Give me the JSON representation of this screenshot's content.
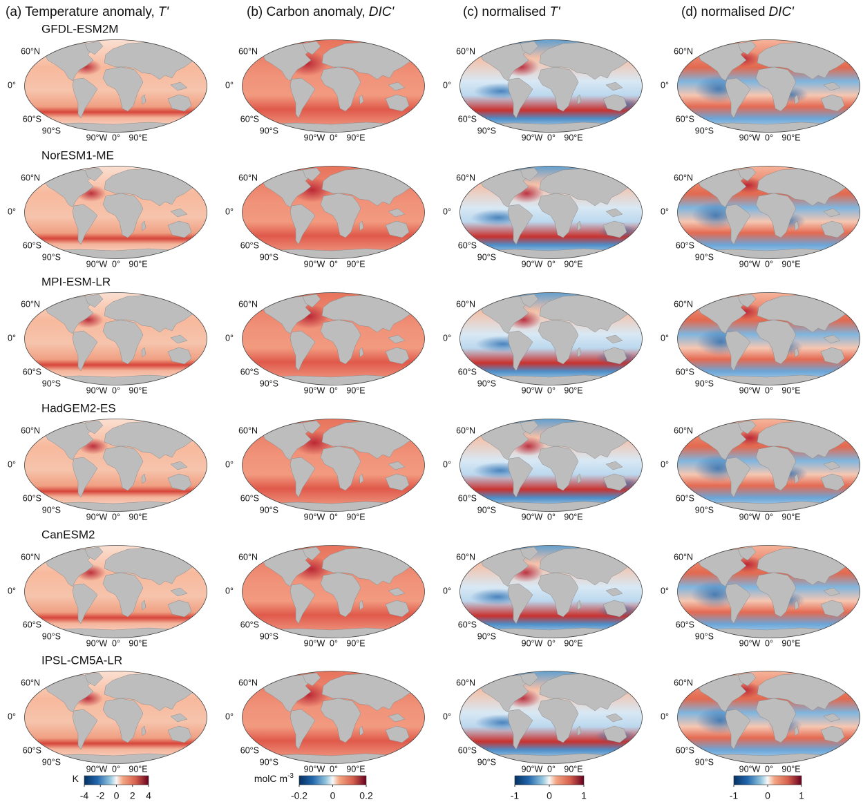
{
  "columns": [
    {
      "title": "(a) Temperature anomaly,",
      "variable": "T'"
    },
    {
      "title": "(b) Carbon anomaly,",
      "variable": "DIC'"
    },
    {
      "title": "(c) normalised",
      "variable": "T'"
    },
    {
      "title": "(d) normalised",
      "variable": "DIC'"
    }
  ],
  "models": [
    "GFDL-ESM2M",
    "NorESM1-ME",
    "MPI-ESM-LR",
    "HadGEM2-ES",
    "CanESM2",
    "IPSL-CM5A-LR"
  ],
  "lat_labels": [
    "60°N",
    "0°",
    "60°S",
    "90°S"
  ],
  "lon_labels": [
    "90°W",
    "0°",
    "90°E"
  ],
  "colorbars": [
    {
      "unit": "K",
      "range": [
        -4,
        4
      ],
      "ticks": [
        -4,
        -2,
        0,
        2,
        4
      ]
    },
    {
      "unit": "molC m",
      "unit_superscript": "-3",
      "range": [
        -0.2,
        0.2
      ],
      "ticks": [
        -0.2,
        0,
        0.2
      ]
    },
    {
      "range": [
        -1,
        1
      ],
      "ticks": [
        -1,
        0,
        1
      ]
    },
    {
      "range": [
        -1,
        1
      ],
      "ticks": [
        -1,
        0,
        1
      ]
    }
  ]
}
